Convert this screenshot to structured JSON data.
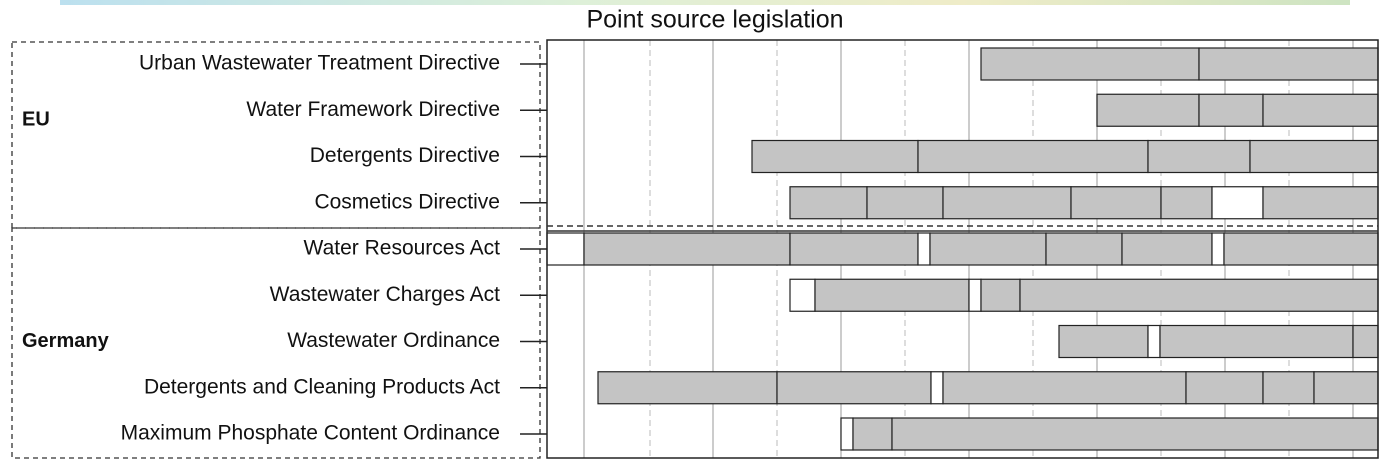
{
  "title": "Point source legislation",
  "groups": [
    {
      "label": "EU",
      "items": [
        "Urban Wastewater Treatment Directive",
        "Water Framework Directive",
        "Detergents Directive",
        "Cosmetics Directive"
      ]
    },
    {
      "label": "Germany",
      "items": [
        "Water Resources Act",
        "Wastewater Charges Act",
        "Wastewater Ordinance",
        "Detergents and Cleaning Products Act",
        "Maximum Phosphate Content Ordinance"
      ]
    }
  ]
}
